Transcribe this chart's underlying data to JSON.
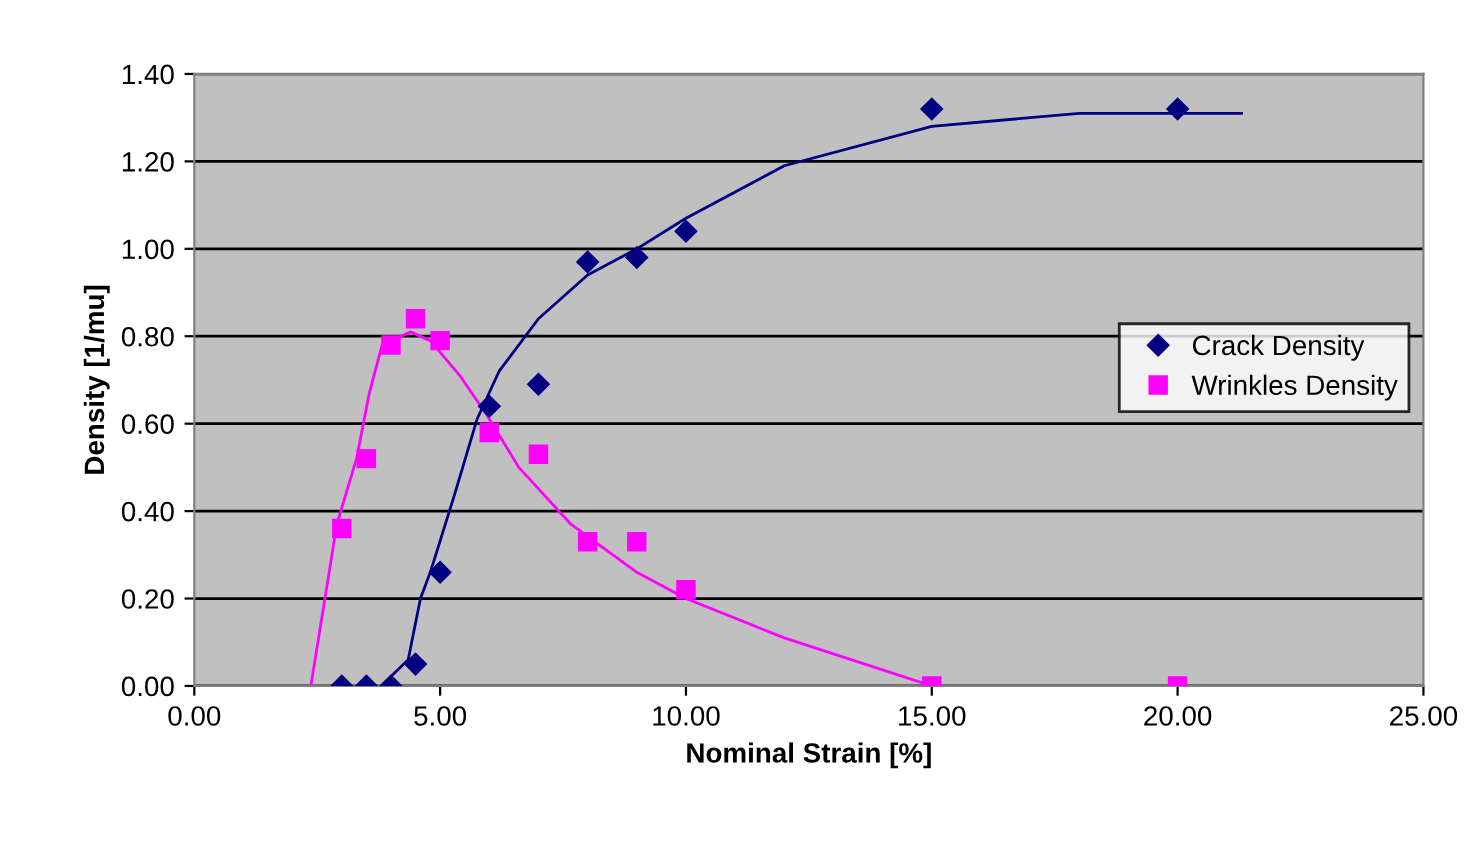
{
  "chart_data": {
    "type": "scatter",
    "xlabel": "Nominal Strain [%]",
    "ylabel": "Density [1/mu]",
    "xlim": [
      0,
      25
    ],
    "xticks": [
      {
        "value": 0,
        "label": "0.00"
      },
      {
        "value": 5,
        "label": "5.00"
      },
      {
        "value": 10,
        "label": "10.00"
      },
      {
        "value": 15,
        "label": "15.00"
      },
      {
        "value": 20,
        "label": "20.00"
      },
      {
        "value": 25,
        "label": "25.00"
      }
    ],
    "ylim": [
      0,
      1.4
    ],
    "yticks": [
      {
        "value": 0,
        "label": "0.00"
      },
      {
        "value": 0.2,
        "label": "0.20"
      },
      {
        "value": 0.4,
        "label": "0.40"
      },
      {
        "value": 0.6,
        "label": "0.60"
      },
      {
        "value": 0.8,
        "label": "0.80"
      },
      {
        "value": 1.0,
        "label": "1.00"
      },
      {
        "value": 1.2,
        "label": "1.20"
      },
      {
        "value": 1.4,
        "label": "1.40"
      }
    ],
    "grid": "y",
    "legend": "right",
    "series": [
      {
        "name": "Crack Density",
        "color": "#000080",
        "marker": "diamond",
        "x": [
          3,
          3.5,
          4,
          4.5,
          5,
          6,
          7,
          8,
          9,
          10,
          15,
          20
        ],
        "values": [
          0,
          0,
          0,
          0.05,
          0.26,
          0.64,
          0.69,
          0.97,
          0.98,
          1.04,
          1.32,
          1.32
        ]
      },
      {
        "name": "Wrinkles Density",
        "color": "#ff00ff",
        "marker": "square",
        "x": [
          3,
          3.5,
          4,
          4.5,
          5,
          6,
          7,
          8,
          9,
          10,
          15,
          20
        ],
        "values": [
          0.36,
          0.52,
          0.78,
          0.84,
          0.79,
          0.58,
          0.53,
          0.33,
          0.33,
          0.22,
          0,
          0
        ]
      },
      {
        "type": "line",
        "color": "#000080",
        "x": [
          3.8,
          4.35,
          4.6,
          4.8,
          5.3,
          5.75,
          6.2,
          7.0,
          8.0,
          9.0,
          10.0,
          12.0,
          15.0,
          18.0,
          20.0,
          21.3
        ],
        "values": [
          0,
          0.06,
          0.2,
          0.26,
          0.44,
          0.61,
          0.72,
          0.84,
          0.94,
          1.0,
          1.07,
          1.19,
          1.28,
          1.31,
          1.31,
          1.31
        ]
      },
      {
        "type": "line",
        "color": "#ff00ff",
        "x": [
          2.37,
          2.9,
          3.3,
          3.56,
          3.82,
          4.4,
          4.8,
          5.4,
          5.95,
          6.6,
          7.66,
          9.0,
          10.0,
          12.0,
          15.0
        ],
        "values": [
          0,
          0.37,
          0.52,
          0.67,
          0.78,
          0.81,
          0.79,
          0.71,
          0.62,
          0.5,
          0.37,
          0.26,
          0.2,
          0.11,
          0
        ]
      }
    ]
  }
}
